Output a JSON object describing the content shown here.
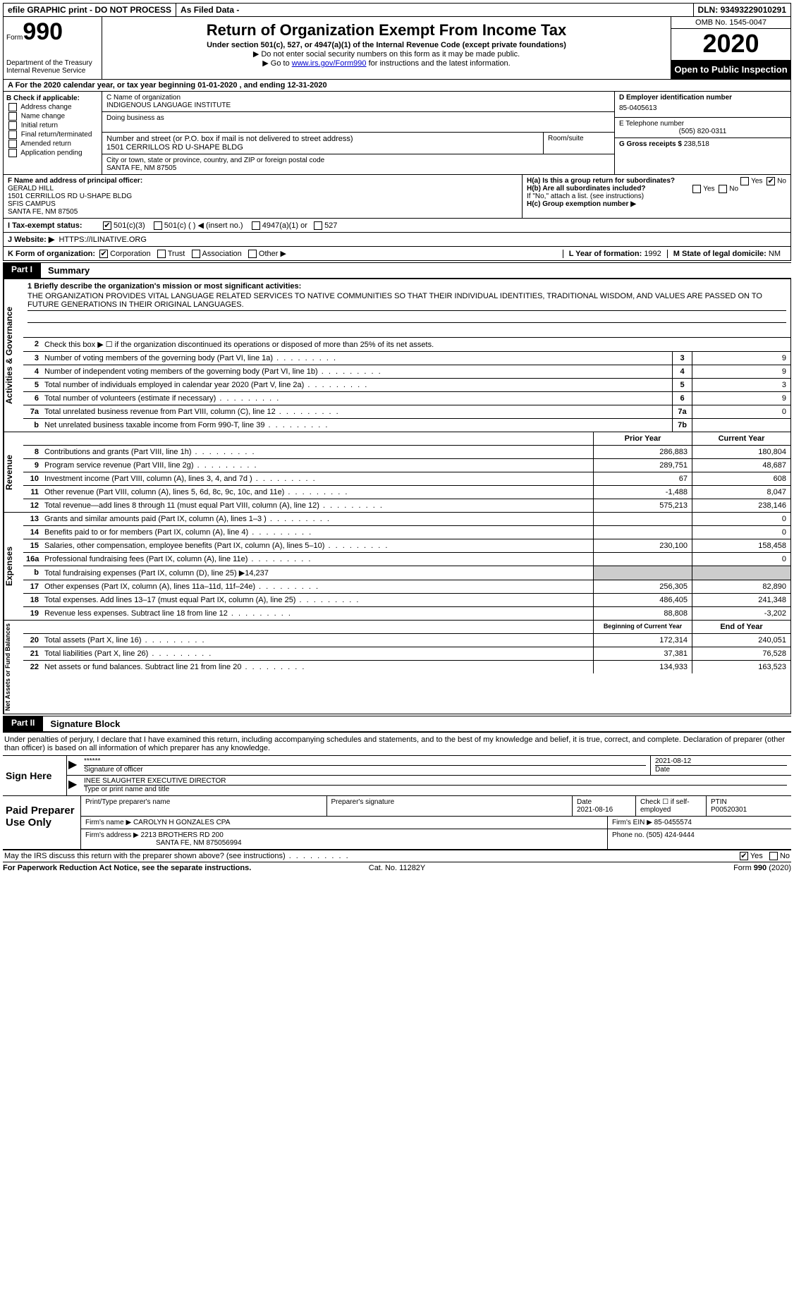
{
  "topbar": {
    "efile": "efile GRAPHIC print - DO NOT PROCESS",
    "filed": "As Filed Data -",
    "dln_label": "DLN:",
    "dln": "93493229010291"
  },
  "header": {
    "form_prefix": "Form",
    "form_no": "990",
    "dept": "Department of the Treasury",
    "irs": "Internal Revenue Service",
    "title": "Return of Organization Exempt From Income Tax",
    "subtitle": "Under section 501(c), 527, or 4947(a)(1) of the Internal Revenue Code (except private foundations)",
    "note1": "▶ Do not enter social security numbers on this form as it may be made public.",
    "note2_pre": "▶ Go to ",
    "note2_link": "www.irs.gov/Form990",
    "note2_post": " for instructions and the latest information.",
    "omb": "OMB No. 1545-0047",
    "year": "2020",
    "open": "Open to Public Inspection"
  },
  "row_a": "A  For the 2020 calendar year, or tax year beginning 01-01-2020   , and ending 12-31-2020",
  "col_b": {
    "label": "B Check if applicable:",
    "items": [
      "Address change",
      "Name change",
      "Initial return",
      "Final return/terminated",
      "Amended return",
      "Application pending"
    ]
  },
  "org": {
    "c_label": "C Name of organization",
    "name": "INDIGENOUS LANGUAGE INSTITUTE",
    "dba_label": "Doing business as",
    "addr_label": "Number and street (or P.O. box if mail is not delivered to street address)",
    "room_label": "Room/suite",
    "addr": "1501 CERRILLOS RD U-SHAPE BLDG",
    "city_label": "City or town, state or province, country, and ZIP or foreign postal code",
    "city": "SANTA FE, NM  87505"
  },
  "right_col": {
    "d_label": "D Employer identification number",
    "ein": "85-0405613",
    "e_label": "E Telephone number",
    "phone": "(505) 820-0311",
    "g_label": "G Gross receipts $",
    "g_val": "238,518"
  },
  "f": {
    "label": "F  Name and address of principal officer:",
    "name": "GERALD HILL",
    "addr1": "1501 CERRILLOS RD U-SHAPE BLDG",
    "addr2": "SFIS CAMPUS",
    "addr3": "SANTA FE, NM  87505"
  },
  "h": {
    "a": "H(a)  Is this a group return for subordinates?",
    "b": "H(b)  Are all subordinates included?",
    "note": "If \"No,\" attach a list. (see instructions)",
    "c": "H(c)  Group exemption number ▶"
  },
  "i": {
    "label": "I  Tax-exempt status:",
    "opts": [
      "501(c)(3)",
      "501(c) (  ) ◀ (insert no.)",
      "4947(a)(1) or",
      "527"
    ]
  },
  "j": {
    "label": "J  Website: ▶",
    "url": "HTTPS://ILINATIVE.ORG"
  },
  "k": {
    "label": "K Form of organization:",
    "opts": [
      "Corporation",
      "Trust",
      "Association",
      "Other ▶"
    ],
    "l_label": "L Year of formation:",
    "l_val": "1992",
    "m_label": "M State of legal domicile:",
    "m_val": "NM"
  },
  "part1": {
    "tag": "Part I",
    "title": "Summary"
  },
  "mission": {
    "label": "1  Briefly describe the organization's mission or most significant activities:",
    "text": "THE ORGANIZATION PROVIDES VITAL LANGUAGE RELATED SERVICES TO NATIVE COMMUNITIES SO THAT THEIR INDIVIDUAL IDENTITIES, TRADITIONAL WISDOM, AND VALUES ARE PASSED ON TO FUTURE GENERATIONS IN THEIR ORIGINAL LANGUAGES."
  },
  "gov_lines": [
    {
      "n": "2",
      "t": "Check this box ▶ ☐ if the organization discontinued its operations or disposed of more than 25% of its net assets."
    },
    {
      "n": "3",
      "t": "Number of voting members of the governing body (Part VI, line 1a)",
      "num": "3",
      "val": "9"
    },
    {
      "n": "4",
      "t": "Number of independent voting members of the governing body (Part VI, line 1b)",
      "num": "4",
      "val": "9"
    },
    {
      "n": "5",
      "t": "Total number of individuals employed in calendar year 2020 (Part V, line 2a)",
      "num": "5",
      "val": "3"
    },
    {
      "n": "6",
      "t": "Total number of volunteers (estimate if necessary)",
      "num": "6",
      "val": "9"
    },
    {
      "n": "7a",
      "t": "Total unrelated business revenue from Part VIII, column (C), line 12",
      "num": "7a",
      "val": "0"
    },
    {
      "n": "b",
      "t": "Net unrelated business taxable income from Form 990-T, line 39",
      "num": "7b",
      "val": ""
    }
  ],
  "col_headers": {
    "prior": "Prior Year",
    "current": "Current Year"
  },
  "revenue": [
    {
      "n": "8",
      "t": "Contributions and grants (Part VIII, line 1h)",
      "p": "286,883",
      "c": "180,804"
    },
    {
      "n": "9",
      "t": "Program service revenue (Part VIII, line 2g)",
      "p": "289,751",
      "c": "48,687"
    },
    {
      "n": "10",
      "t": "Investment income (Part VIII, column (A), lines 3, 4, and 7d )",
      "p": "67",
      "c": "608"
    },
    {
      "n": "11",
      "t": "Other revenue (Part VIII, column (A), lines 5, 6d, 8c, 9c, 10c, and 11e)",
      "p": "-1,488",
      "c": "8,047"
    },
    {
      "n": "12",
      "t": "Total revenue—add lines 8 through 11 (must equal Part VIII, column (A), line 12)",
      "p": "575,213",
      "c": "238,146"
    }
  ],
  "expenses": [
    {
      "n": "13",
      "t": "Grants and similar amounts paid (Part IX, column (A), lines 1–3 )",
      "p": "",
      "c": "0"
    },
    {
      "n": "14",
      "t": "Benefits paid to or for members (Part IX, column (A), line 4)",
      "p": "",
      "c": "0"
    },
    {
      "n": "15",
      "t": "Salaries, other compensation, employee benefits (Part IX, column (A), lines 5–10)",
      "p": "230,100",
      "c": "158,458"
    },
    {
      "n": "16a",
      "t": "Professional fundraising fees (Part IX, column (A), line 11e)",
      "p": "",
      "c": "0"
    },
    {
      "n": "b",
      "t": "Total fundraising expenses (Part IX, column (D), line 25) ▶14,237",
      "noval": true
    },
    {
      "n": "17",
      "t": "Other expenses (Part IX, column (A), lines 11a–11d, 11f–24e)",
      "p": "256,305",
      "c": "82,890"
    },
    {
      "n": "18",
      "t": "Total expenses. Add lines 13–17 (must equal Part IX, column (A), line 25)",
      "p": "486,405",
      "c": "241,348"
    },
    {
      "n": "19",
      "t": "Revenue less expenses. Subtract line 18 from line 12",
      "p": "88,808",
      "c": "-3,202"
    }
  ],
  "net_headers": {
    "begin": "Beginning of Current Year",
    "end": "End of Year"
  },
  "net": [
    {
      "n": "20",
      "t": "Total assets (Part X, line 16)",
      "p": "172,314",
      "c": "240,051"
    },
    {
      "n": "21",
      "t": "Total liabilities (Part X, line 26)",
      "p": "37,381",
      "c": "76,528"
    },
    {
      "n": "22",
      "t": "Net assets or fund balances. Subtract line 21 from line 20",
      "p": "134,933",
      "c": "163,523"
    }
  ],
  "vtabs": {
    "gov": "Activities & Governance",
    "rev": "Revenue",
    "exp": "Expenses",
    "net": "Net Assets or Fund Balances"
  },
  "part2": {
    "tag": "Part II",
    "title": "Signature Block"
  },
  "declare": "Under penalties of perjury, I declare that I have examined this return, including accompanying schedules and statements, and to the best of my knowledge and belief, it is true, correct, and complete. Declaration of preparer (other than officer) is based on all information of which preparer has any knowledge.",
  "sign": {
    "label": "Sign Here",
    "stars": "******",
    "sig_officer": "Signature of officer",
    "date": "2021-08-12",
    "date_lbl": "Date",
    "name": "INEE SLAUGHTER  EXECUTIVE DIRECTOR",
    "name_lbl": "Type or print name and title"
  },
  "paid": {
    "label": "Paid Preparer Use Only",
    "h1": "Print/Type preparer's name",
    "h2": "Preparer's signature",
    "h3_lbl": "Date",
    "h3": "2021-08-16",
    "h4": "Check ☐ if self-employed",
    "h5_lbl": "PTIN",
    "h5": "P00520301",
    "firm_lbl": "Firm's name    ▶",
    "firm": "CAROLYN H GONZALES CPA",
    "ein_lbl": "Firm's EIN ▶",
    "ein": "85-0455574",
    "addr_lbl": "Firm's address ▶",
    "addr1": "2213 BROTHERS RD 200",
    "addr2": "SANTA FE, NM  875056994",
    "phone_lbl": "Phone no.",
    "phone": "(505) 424-9444"
  },
  "may_irs": "May the IRS discuss this return with the preparer shown above? (see instructions)",
  "footer": {
    "left": "For Paperwork Reduction Act Notice, see the separate instructions.",
    "mid": "Cat. No. 11282Y",
    "right_pre": "Form ",
    "right_bold": "990",
    "right_post": " (2020)"
  },
  "yes": "Yes",
  "no": "No"
}
